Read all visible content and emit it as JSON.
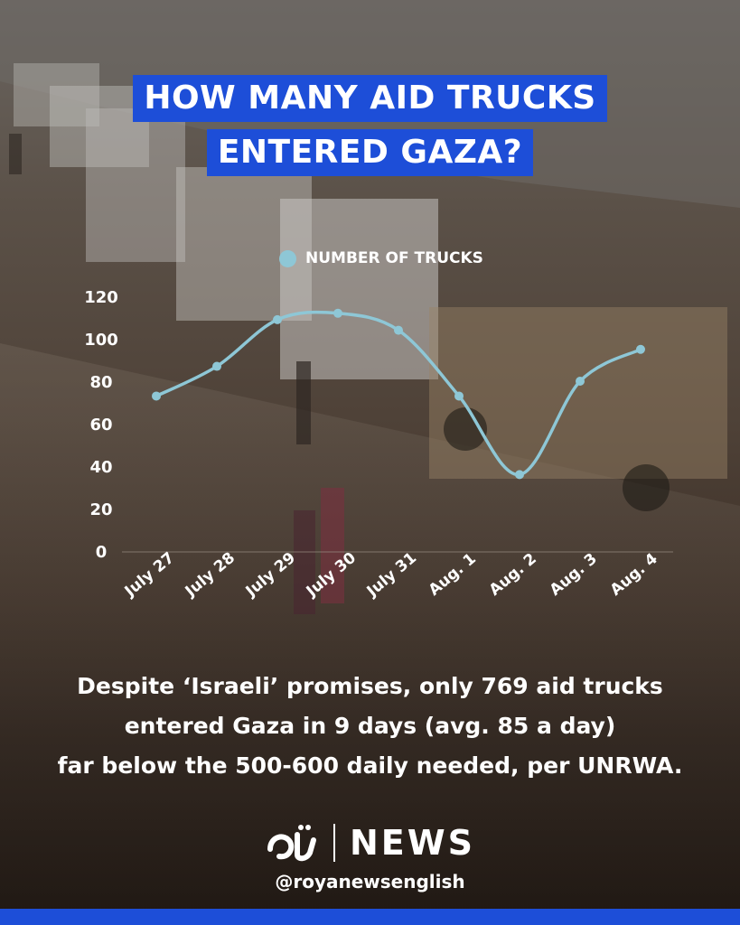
{
  "title_lines": [
    "HOW MANY AID TRUCKS",
    "ENTERED GAZA?"
  ],
  "colors": {
    "title_bg": "#1d4ed8",
    "line": "#8ec7d6",
    "bottom_bar": "#1d4ed8"
  },
  "chart_data": {
    "type": "line",
    "categories": [
      "July 27",
      "July 28",
      "July 29",
      "July 30",
      "July 31",
      "Aug. 1",
      "Aug. 2",
      "Aug. 3",
      "Aug. 4"
    ],
    "series": [
      {
        "name": "NUMBER OF TRUCKS",
        "values": [
          73,
          87,
          109,
          112,
          104,
          73,
          36,
          80,
          95
        ]
      }
    ],
    "yticks": [
      0,
      20,
      40,
      60,
      80,
      100,
      120
    ],
    "ylim": [
      0,
      120
    ],
    "legend_position": "top",
    "grid": false
  },
  "caption_lines": [
    "Despite ‘Israeli’ promises, only 769 aid trucks",
    "entered Gaza in 9 days (avg. 85 a day)",
    "far below the 500-600 daily needed, per UNRWA."
  ],
  "brand": {
    "logo_icon": "roya-logo-icon",
    "name": "NEWS",
    "handle": "@royanewsenglish"
  }
}
